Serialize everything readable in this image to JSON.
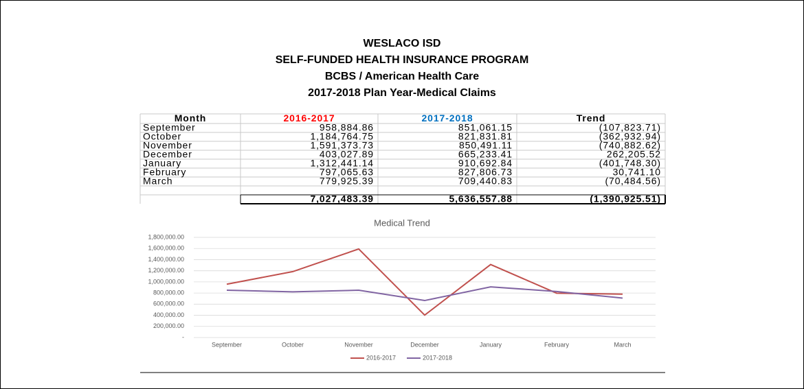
{
  "header": {
    "lines": [
      "WESLACO ISD",
      "SELF-FUNDED HEALTH INSURANCE PROGRAM",
      "BCBS / American Health Care",
      "2017-2018 Plan Year-Medical Claims"
    ]
  },
  "table": {
    "columns": [
      "Month",
      "2016-2017",
      "2017-2018",
      "Trend"
    ],
    "rows": [
      [
        "September",
        "958,884.86",
        "851,061.15",
        "(107,823.71)"
      ],
      [
        "October",
        "1,184,764.75",
        "821,831.81",
        "(362,932.94)"
      ],
      [
        "November",
        "1,591,373.73",
        "850,491.11",
        "(740,882.62)"
      ],
      [
        "December",
        "403,027.89",
        "665,233.41",
        "262,205.52"
      ],
      [
        "January",
        "1,312,441.14",
        "910,692.84",
        "(401,748.30)"
      ],
      [
        "February",
        "797,065.63",
        "827,806.73",
        "30,741.10"
      ],
      [
        "March",
        "779,925.39",
        "709,440.83",
        "(70,484.56)"
      ]
    ],
    "totals": [
      "7,027,483.39",
      "5,636,557.88",
      "(1,390,925.51)"
    ]
  },
  "chart_data": {
    "type": "line",
    "title": "Medical Trend",
    "categories": [
      "September",
      "October",
      "November",
      "December",
      "January",
      "February",
      "March"
    ],
    "series": [
      {
        "name": "2016-2017",
        "color": "#c0504d",
        "values": [
          958884.86,
          1184764.75,
          1591373.73,
          403027.89,
          1312441.14,
          797065.63,
          779925.39
        ]
      },
      {
        "name": "2017-2018",
        "color": "#8064a2",
        "values": [
          851061.15,
          821831.81,
          850491.11,
          665233.41,
          910692.84,
          827806.73,
          709440.83
        ]
      }
    ],
    "ylim": [
      0,
      1800000
    ],
    "yticks": [
      {
        "value": 0,
        "label": "-"
      },
      {
        "value": 200000,
        "label": "200,000.00"
      },
      {
        "value": 400000,
        "label": "400,000.00"
      },
      {
        "value": 600000,
        "label": "600,000.00"
      },
      {
        "value": 800000,
        "label": "800,000.00"
      },
      {
        "value": 1000000,
        "label": "1,000,000.00"
      },
      {
        "value": 1200000,
        "label": "1,200,000.00"
      },
      {
        "value": 1400000,
        "label": "1,400,000.00"
      },
      {
        "value": 1600000,
        "label": "1,600,000.00"
      },
      {
        "value": 1800000,
        "label": "1,800,000.00"
      }
    ],
    "grid": true,
    "legend": "bottom"
  }
}
